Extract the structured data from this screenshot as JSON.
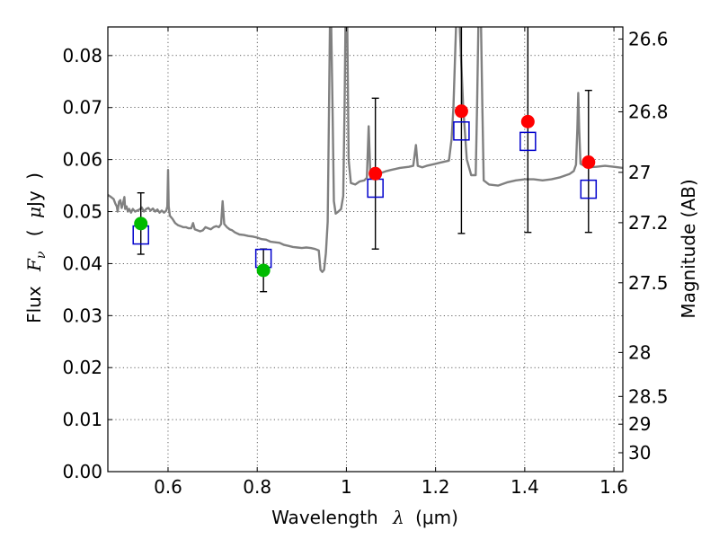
{
  "chart_data": {
    "type": "scatter",
    "title": "",
    "xlabel": {
      "prefix": "Wavelength",
      "symbol": "λ",
      "unit": "(μm)"
    },
    "ylabel": {
      "prefix": "Flux",
      "symbol": "F",
      "subscript": "ν",
      "unit_open": "(",
      "unit_mu": "μ",
      "unit_rest": "Jy",
      "unit_close": ")"
    },
    "ylabel_right": "Magnitude (AB)",
    "xlim": [
      0.465,
      1.62
    ],
    "ylim": [
      0.0,
      0.0855
    ],
    "grid": true,
    "colors": {
      "spectrum": "#808080",
      "green_points": "#00bb00",
      "red_points": "#ff0000",
      "model_boxes": "#0000cc",
      "errorbars": "#000000"
    },
    "x_ticks": [
      {
        "value": 0.6,
        "label": "0.6"
      },
      {
        "value": 0.8,
        "label": "0.8"
      },
      {
        "value": 1.0,
        "label": "1"
      },
      {
        "value": 1.2,
        "label": "1.2"
      },
      {
        "value": 1.4,
        "label": "1.4"
      },
      {
        "value": 1.6,
        "label": "1.6"
      }
    ],
    "y_ticks": [
      {
        "value": 0.0,
        "label": "0.00"
      },
      {
        "value": 0.01,
        "label": "0.01"
      },
      {
        "value": 0.02,
        "label": "0.02"
      },
      {
        "value": 0.03,
        "label": "0.03"
      },
      {
        "value": 0.04,
        "label": "0.04"
      },
      {
        "value": 0.05,
        "label": "0.05"
      },
      {
        "value": 0.06,
        "label": "0.06"
      },
      {
        "value": 0.07,
        "label": "0.07"
      },
      {
        "value": 0.08,
        "label": "0.08"
      }
    ],
    "y2_ticks": [
      {
        "mag": 26.6,
        "label": "26.6"
      },
      {
        "mag": 26.8,
        "label": "26.8"
      },
      {
        "mag": 27.0,
        "label": "27"
      },
      {
        "mag": 27.2,
        "label": "27.2"
      },
      {
        "mag": 27.5,
        "label": "27.5"
      },
      {
        "mag": 28.0,
        "label": "28"
      },
      {
        "mag": 28.5,
        "label": "28.5"
      },
      {
        "mag": 29.0,
        "label": "29"
      },
      {
        "mag": 30.0,
        "label": "30"
      }
    ],
    "spectrum": [
      [
        0.465,
        0.0532
      ],
      [
        0.472,
        0.0528
      ],
      [
        0.478,
        0.0524
      ],
      [
        0.482,
        0.0515
      ],
      [
        0.485,
        0.051
      ],
      [
        0.487,
        0.05
      ],
      [
        0.49,
        0.0519
      ],
      [
        0.493,
        0.0522
      ],
      [
        0.496,
        0.0507
      ],
      [
        0.499,
        0.0516
      ],
      [
        0.502,
        0.0528
      ],
      [
        0.504,
        0.0505
      ],
      [
        0.507,
        0.051
      ],
      [
        0.51,
        0.05
      ],
      [
        0.513,
        0.0505
      ],
      [
        0.517,
        0.0498
      ],
      [
        0.521,
        0.0505
      ],
      [
        0.526,
        0.05
      ],
      [
        0.531,
        0.0502
      ],
      [
        0.536,
        0.0504
      ],
      [
        0.541,
        0.0508
      ],
      [
        0.546,
        0.05
      ],
      [
        0.551,
        0.0505
      ],
      [
        0.556,
        0.0507
      ],
      [
        0.561,
        0.0502
      ],
      [
        0.566,
        0.0506
      ],
      [
        0.571,
        0.05
      ],
      [
        0.576,
        0.0504
      ],
      [
        0.581,
        0.0498
      ],
      [
        0.586,
        0.0502
      ],
      [
        0.591,
        0.0498
      ],
      [
        0.596,
        0.0502
      ],
      [
        0.5985,
        0.051
      ],
      [
        0.6,
        0.058
      ],
      [
        0.6015,
        0.051
      ],
      [
        0.604,
        0.0492
      ],
      [
        0.61,
        0.0486
      ],
      [
        0.616,
        0.0478
      ],
      [
        0.622,
        0.0474
      ],
      [
        0.628,
        0.0472
      ],
      [
        0.634,
        0.047
      ],
      [
        0.64,
        0.047
      ],
      [
        0.646,
        0.0468
      ],
      [
        0.652,
        0.0468
      ],
      [
        0.656,
        0.0478
      ],
      [
        0.66,
        0.0466
      ],
      [
        0.666,
        0.0464
      ],
      [
        0.672,
        0.0462
      ],
      [
        0.678,
        0.0464
      ],
      [
        0.684,
        0.047
      ],
      [
        0.69,
        0.0468
      ],
      [
        0.696,
        0.0466
      ],
      [
        0.702,
        0.047
      ],
      [
        0.708,
        0.0472
      ],
      [
        0.714,
        0.047
      ],
      [
        0.719,
        0.0476
      ],
      [
        0.7225,
        0.052
      ],
      [
        0.726,
        0.0476
      ],
      [
        0.732,
        0.047
      ],
      [
        0.738,
        0.0466
      ],
      [
        0.744,
        0.0464
      ],
      [
        0.75,
        0.046
      ],
      [
        0.76,
        0.0456
      ],
      [
        0.77,
        0.0455
      ],
      [
        0.78,
        0.0453
      ],
      [
        0.79,
        0.0452
      ],
      [
        0.8,
        0.045
      ],
      [
        0.81,
        0.0447
      ],
      [
        0.82,
        0.0446
      ],
      [
        0.83,
        0.0442
      ],
      [
        0.84,
        0.0441
      ],
      [
        0.85,
        0.044
      ],
      [
        0.86,
        0.0436
      ],
      [
        0.87,
        0.0434
      ],
      [
        0.88,
        0.0432
      ],
      [
        0.89,
        0.0431
      ],
      [
        0.9,
        0.043
      ],
      [
        0.91,
        0.0431
      ],
      [
        0.92,
        0.043
      ],
      [
        0.93,
        0.0428
      ],
      [
        0.938,
        0.0425
      ],
      [
        0.942,
        0.0388
      ],
      [
        0.946,
        0.0384
      ],
      [
        0.95,
        0.0388
      ],
      [
        0.954,
        0.042
      ],
      [
        0.958,
        0.048
      ],
      [
        0.961,
        0.07
      ],
      [
        0.963,
        0.086
      ],
      [
        0.966,
        0.086
      ],
      [
        0.969,
        0.07
      ],
      [
        0.972,
        0.052
      ],
      [
        0.976,
        0.0496
      ],
      [
        0.982,
        0.05
      ],
      [
        0.988,
        0.0505
      ],
      [
        0.993,
        0.053
      ],
      [
        0.996,
        0.07
      ],
      [
        0.998,
        0.086
      ],
      [
        1.002,
        0.086
      ],
      [
        1.005,
        0.06
      ],
      [
        1.01,
        0.0555
      ],
      [
        1.02,
        0.0552
      ],
      [
        1.03,
        0.0558
      ],
      [
        1.04,
        0.056
      ],
      [
        1.046,
        0.0565
      ],
      [
        1.05,
        0.0664
      ],
      [
        1.054,
        0.0565
      ],
      [
        1.06,
        0.0568
      ],
      [
        1.07,
        0.0572
      ],
      [
        1.08,
        0.0575
      ],
      [
        1.09,
        0.0578
      ],
      [
        1.1,
        0.058
      ],
      [
        1.11,
        0.0582
      ],
      [
        1.12,
        0.0584
      ],
      [
        1.13,
        0.0585
      ],
      [
        1.14,
        0.0586
      ],
      [
        1.15,
        0.0588
      ],
      [
        1.156,
        0.0628
      ],
      [
        1.16,
        0.0588
      ],
      [
        1.17,
        0.0585
      ],
      [
        1.18,
        0.0588
      ],
      [
        1.19,
        0.059
      ],
      [
        1.2,
        0.0592
      ],
      [
        1.21,
        0.0594
      ],
      [
        1.22,
        0.0596
      ],
      [
        1.23,
        0.0598
      ],
      [
        1.236,
        0.064
      ],
      [
        1.24,
        0.07
      ],
      [
        1.246,
        0.086
      ],
      [
        1.254,
        0.086
      ],
      [
        1.262,
        0.07
      ],
      [
        1.27,
        0.06
      ],
      [
        1.28,
        0.057
      ],
      [
        1.29,
        0.057
      ],
      [
        1.293,
        0.07
      ],
      [
        1.296,
        0.086
      ],
      [
        1.302,
        0.086
      ],
      [
        1.305,
        0.07
      ],
      [
        1.308,
        0.056
      ],
      [
        1.32,
        0.0552
      ],
      [
        1.34,
        0.055
      ],
      [
        1.36,
        0.0556
      ],
      [
        1.38,
        0.056
      ],
      [
        1.4,
        0.0562
      ],
      [
        1.42,
        0.0562
      ],
      [
        1.44,
        0.056
      ],
      [
        1.46,
        0.0562
      ],
      [
        1.48,
        0.0566
      ],
      [
        1.5,
        0.0572
      ],
      [
        1.51,
        0.0578
      ],
      [
        1.515,
        0.059
      ],
      [
        1.518,
        0.066
      ],
      [
        1.52,
        0.0728
      ],
      [
        1.522,
        0.066
      ],
      [
        1.525,
        0.0592
      ],
      [
        1.54,
        0.0585
      ],
      [
        1.56,
        0.0586
      ],
      [
        1.58,
        0.0588
      ],
      [
        1.6,
        0.0586
      ],
      [
        1.62,
        0.0584
      ]
    ],
    "model_boxes": [
      {
        "x": 0.539,
        "y": 0.0455
      },
      {
        "x": 0.814,
        "y": 0.041
      },
      {
        "x": 1.065,
        "y": 0.0545
      },
      {
        "x": 1.258,
        "y": 0.0655
      },
      {
        "x": 1.407,
        "y": 0.0635
      },
      {
        "x": 1.543,
        "y": 0.0543
      }
    ],
    "green_points": [
      {
        "x": 0.539,
        "y": 0.0477,
        "err_low": 0.0418,
        "err_high": 0.0536
      },
      {
        "x": 0.814,
        "y": 0.0387,
        "err_low": 0.0346,
        "err_high": 0.0428
      }
    ],
    "red_points": [
      {
        "x": 1.065,
        "y": 0.0573,
        "err_low": 0.0428,
        "err_high": 0.0718
      },
      {
        "x": 1.258,
        "y": 0.0693,
        "err_low": 0.0458,
        "err_high": 0.086
      },
      {
        "x": 1.407,
        "y": 0.0673,
        "err_low": 0.046,
        "err_high": 0.086
      },
      {
        "x": 1.543,
        "y": 0.0595,
        "err_low": 0.046,
        "err_high": 0.0733
      }
    ]
  }
}
